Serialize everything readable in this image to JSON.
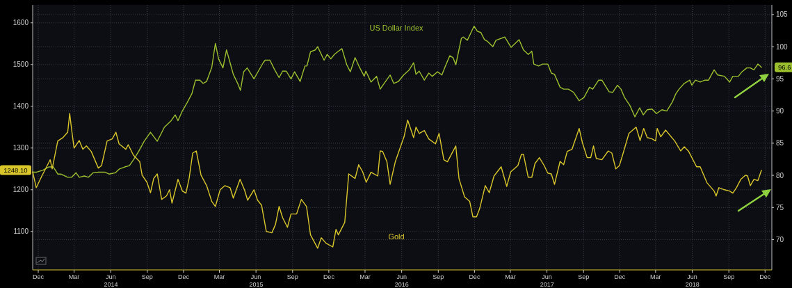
{
  "chart_data": {
    "type": "line",
    "xlim": [
      "2013-11-17",
      "2018-12-18"
    ],
    "xticks": [
      {
        "value": "2013-12-01",
        "label": "Dec"
      },
      {
        "value": "2014-03-01",
        "label": "Mar"
      },
      {
        "value": "2014-06-01",
        "label": "Jun"
      },
      {
        "value": "2014-09-01",
        "label": "Sep"
      },
      {
        "value": "2014-12-01",
        "label": "Dec"
      },
      {
        "value": "2015-03-01",
        "label": "Mar"
      },
      {
        "value": "2015-06-01",
        "label": "Jun"
      },
      {
        "value": "2015-09-01",
        "label": "Sep"
      },
      {
        "value": "2015-12-01",
        "label": "Dec"
      },
      {
        "value": "2016-03-01",
        "label": "Mar"
      },
      {
        "value": "2016-06-01",
        "label": "Jun"
      },
      {
        "value": "2016-09-01",
        "label": "Sep"
      },
      {
        "value": "2016-12-01",
        "label": "Dec"
      },
      {
        "value": "2017-03-01",
        "label": "Mar"
      },
      {
        "value": "2017-06-01",
        "label": "Jun"
      },
      {
        "value": "2017-09-01",
        "label": "Sep"
      },
      {
        "value": "2017-12-01",
        "label": "Dec"
      },
      {
        "value": "2018-03-01",
        "label": "Mar"
      },
      {
        "value": "2018-06-01",
        "label": "Jun"
      },
      {
        "value": "2018-09-01",
        "label": "Sep"
      },
      {
        "value": "2018-12-01",
        "label": "Dec"
      }
    ],
    "ylim": [
      1008,
      1643
    ],
    "yticks": [
      1100,
      1200,
      1300,
      1400,
      1500,
      1600
    ],
    "y2lim": [
      65.3,
      106.5
    ],
    "y2ticks": [
      70,
      75,
      80,
      85,
      90,
      95,
      100,
      105
    ],
    "grid": true,
    "annotations": [
      "96.6",
      "1248.10",
      "2014",
      "2015",
      "2016",
      "2017",
      "2018"
    ],
    "series": [
      {
        "name": "US Dollar Index",
        "color": "#9cbf2e",
        "axis": "y2",
        "x": [
          "2013-11-17",
          "2013-11-27",
          "2013-12-13",
          "2013-12-27",
          "2014-01-08",
          "2014-01-19",
          "2014-01-27",
          "2014-02-13",
          "2014-02-23",
          "2014-03-06",
          "2014-03-14",
          "2014-03-27",
          "2014-04-06",
          "2014-04-18",
          "2014-05-02",
          "2014-05-17",
          "2014-05-28",
          "2014-06-13",
          "2014-06-23",
          "2014-07-06",
          "2014-07-18",
          "2014-07-28",
          "2014-08-10",
          "2014-08-24",
          "2014-09-09",
          "2014-09-26",
          "2014-10-14",
          "2014-10-31",
          "2014-11-10",
          "2014-11-17",
          "2014-11-28",
          "2014-12-10",
          "2014-12-22",
          "2014-12-31",
          "2015-01-11",
          "2015-01-19",
          "2015-01-28",
          "2015-02-10",
          "2015-02-19",
          "2015-02-27",
          "2015-03-10",
          "2015-03-19",
          "2015-03-28",
          "2015-04-05",
          "2015-04-16",
          "2015-04-23",
          "2015-05-01",
          "2015-05-10",
          "2015-05-18",
          "2015-05-27",
          "2015-06-07",
          "2015-06-19",
          "2015-06-24",
          "2015-07-06",
          "2015-07-18",
          "2015-07-29",
          "2015-08-07",
          "2015-08-16",
          "2015-08-28",
          "2015-09-06",
          "2015-09-20",
          "2015-10-02",
          "2015-10-07",
          "2015-10-16",
          "2015-10-28",
          "2015-11-03",
          "2015-11-19",
          "2015-11-27",
          "2015-12-06",
          "2015-12-15",
          "2015-12-23",
          "2016-01-03",
          "2016-01-15",
          "2016-01-24",
          "2016-02-05",
          "2016-02-16",
          "2016-02-28",
          "2016-03-03",
          "2016-03-16",
          "2016-03-30",
          "2016-04-08",
          "2016-04-24",
          "2016-05-03",
          "2016-05-12",
          "2016-05-24",
          "2016-06-06",
          "2016-06-20",
          "2016-07-01",
          "2016-07-07",
          "2016-07-15",
          "2016-07-28",
          "2016-08-08",
          "2016-08-17",
          "2016-08-30",
          "2016-09-10",
          "2016-09-19",
          "2016-09-30",
          "2016-10-08",
          "2016-10-15",
          "2016-10-29",
          "2016-11-03",
          "2016-11-13",
          "2016-11-30",
          "2016-12-08",
          "2016-12-17",
          "2016-12-26",
          "2017-01-03",
          "2017-01-16",
          "2017-01-24",
          "2017-02-15",
          "2017-03-03",
          "2017-03-23",
          "2017-04-03",
          "2017-04-15",
          "2017-04-24",
          "2017-04-29",
          "2017-05-11",
          "2017-05-21",
          "2017-06-03",
          "2017-06-12",
          "2017-06-20",
          "2017-07-04",
          "2017-07-13",
          "2017-07-25",
          "2017-08-07",
          "2017-08-21",
          "2017-09-02",
          "2017-09-16",
          "2017-09-24",
          "2017-10-09",
          "2017-10-17",
          "2017-11-04",
          "2017-11-13",
          "2017-11-25",
          "2017-12-04",
          "2017-12-13",
          "2017-12-27",
          "2018-01-08",
          "2018-01-20",
          "2018-01-29",
          "2018-02-08",
          "2018-02-20",
          "2018-03-03",
          "2018-03-17",
          "2018-03-29",
          "2018-04-12",
          "2018-04-21",
          "2018-04-29",
          "2018-05-12",
          "2018-05-26",
          "2018-05-31",
          "2018-06-09",
          "2018-06-21",
          "2018-07-03",
          "2018-07-12",
          "2018-07-26",
          "2018-08-04",
          "2018-08-21",
          "2018-09-03",
          "2018-09-11",
          "2018-09-25",
          "2018-10-04",
          "2018-10-16",
          "2018-10-25",
          "2018-11-03",
          "2018-11-13",
          "2018-11-22"
        ],
        "values": [
          80.5,
          80.5,
          80.8,
          81.3,
          81.3,
          80.2,
          80.2,
          79.7,
          79.7,
          80.4,
          79.7,
          79.9,
          79.7,
          80.4,
          80.5,
          80.5,
          80.2,
          80.4,
          81.0,
          81.3,
          81.5,
          82.4,
          83.7,
          85.3,
          86.7,
          85.3,
          87.5,
          88.5,
          89.4,
          88.5,
          90.0,
          91.3,
          92.7,
          94.8,
          94.8,
          94.3,
          94.6,
          96.8,
          100.5,
          98.1,
          96.7,
          99.5,
          97.5,
          95.7,
          94.3,
          93.2,
          96.1,
          96.7,
          95.9,
          95.0,
          96.2,
          97.5,
          97.9,
          97.9,
          96.4,
          95.2,
          96.2,
          96.2,
          95.0,
          96.1,
          94.6,
          97.0,
          97.0,
          99.2,
          99.5,
          100.0,
          97.9,
          98.8,
          98.1,
          98.8,
          99.2,
          99.7,
          97.2,
          96.1,
          98.3,
          96.8,
          95.4,
          96.2,
          94.5,
          95.4,
          93.4,
          94.8,
          95.6,
          94.3,
          94.6,
          95.6,
          96.4,
          97.5,
          95.7,
          96.2,
          94.8,
          95.9,
          95.4,
          96.1,
          95.6,
          97.0,
          98.6,
          98.3,
          97.2,
          101.3,
          101.5,
          101.0,
          103.2,
          102.4,
          102.2,
          101.1,
          100.8,
          100.0,
          101.0,
          101.5,
          99.9,
          101.1,
          99.5,
          98.8,
          99.3,
          97.3,
          97.0,
          97.3,
          97.3,
          95.9,
          95.7,
          93.7,
          93.4,
          93.4,
          92.9,
          91.6,
          92.1,
          93.7,
          93.4,
          94.8,
          94.8,
          93.0,
          92.9,
          94.0,
          93.4,
          92.1,
          90.8,
          89.1,
          90.5,
          89.4,
          90.2,
          90.3,
          89.6,
          90.2,
          90.0,
          91.4,
          92.7,
          93.4,
          94.3,
          94.8,
          94.0,
          94.8,
          94.5,
          94.8,
          94.8,
          96.4,
          95.6,
          95.4,
          94.5,
          95.4,
          95.4,
          96.1,
          96.7,
          96.7,
          96.4,
          97.3,
          96.8
        ]
      },
      {
        "name": "Gold",
        "color": "#d9c62b",
        "x": [
          "2013-11-17",
          "2013-11-26",
          "2013-12-10",
          "2013-12-22",
          "2013-12-31",
          "2014-01-05",
          "2014-01-19",
          "2014-02-01",
          "2014-02-13",
          "2014-02-18",
          "2014-02-23",
          "2014-03-01",
          "2014-03-14",
          "2014-03-23",
          "2014-04-01",
          "2014-04-13",
          "2014-05-01",
          "2014-05-09",
          "2014-05-23",
          "2014-06-05",
          "2014-06-14",
          "2014-06-22",
          "2014-07-09",
          "2014-07-15",
          "2014-07-28",
          "2014-08-13",
          "2014-08-19",
          "2014-08-31",
          "2014-09-09",
          "2014-09-17",
          "2014-09-26",
          "2014-10-07",
          "2014-10-19",
          "2014-10-27",
          "2014-11-02",
          "2014-11-17",
          "2014-11-28",
          "2014-12-07",
          "2014-12-15",
          "2014-12-24",
          "2015-01-02",
          "2015-01-14",
          "2015-01-28",
          "2015-02-10",
          "2015-02-19",
          "2015-03-03",
          "2015-03-15",
          "2015-03-28",
          "2015-04-05",
          "2015-04-22",
          "2015-05-03",
          "2015-05-11",
          "2015-05-27",
          "2015-06-05",
          "2015-06-15",
          "2015-06-27",
          "2015-07-11",
          "2015-07-20",
          "2015-07-29",
          "2015-08-07",
          "2015-08-19",
          "2015-08-28",
          "2015-09-11",
          "2015-09-23",
          "2015-10-06",
          "2015-10-16",
          "2015-11-03",
          "2015-11-12",
          "2015-11-24",
          "2015-12-11",
          "2015-12-19",
          "2015-12-25",
          "2016-01-10",
          "2016-01-20",
          "2016-02-05",
          "2016-02-14",
          "2016-02-24",
          "2016-03-04",
          "2016-03-16",
          "2016-04-02",
          "2016-04-08",
          "2016-04-14",
          "2016-04-25",
          "2016-05-03",
          "2016-05-16",
          "2016-05-28",
          "2016-06-07",
          "2016-06-16",
          "2016-07-01",
          "2016-07-07",
          "2016-07-15",
          "2016-07-28",
          "2016-08-08",
          "2016-08-25",
          "2016-09-03",
          "2016-09-15",
          "2016-09-24",
          "2016-10-15",
          "2016-10-23",
          "2016-11-06",
          "2016-11-19",
          "2016-11-27",
          "2016-12-06",
          "2016-12-14",
          "2016-12-28",
          "2017-01-07",
          "2017-01-19",
          "2017-02-06",
          "2017-02-20",
          "2017-03-02",
          "2017-03-20",
          "2017-03-29",
          "2017-04-03",
          "2017-04-15",
          "2017-04-24",
          "2017-05-02",
          "2017-05-13",
          "2017-05-25",
          "2017-06-03",
          "2017-06-12",
          "2017-06-20",
          "2017-07-04",
          "2017-07-13",
          "2017-07-22",
          "2017-08-03",
          "2017-08-21",
          "2017-08-29",
          "2017-09-10",
          "2017-09-19",
          "2017-09-26",
          "2017-10-03",
          "2017-10-17",
          "2017-11-02",
          "2017-11-11",
          "2017-11-21",
          "2017-11-30",
          "2017-12-08",
          "2017-12-24",
          "2018-01-11",
          "2018-01-21",
          "2018-01-30",
          "2018-02-08",
          "2018-02-20",
          "2018-03-01",
          "2018-03-05",
          "2018-03-14",
          "2018-03-26",
          "2018-04-18",
          "2018-05-03",
          "2018-05-12",
          "2018-05-23",
          "2018-06-12",
          "2018-06-21",
          "2018-07-08",
          "2018-07-26",
          "2018-07-31",
          "2018-08-07",
          "2018-08-21",
          "2018-09-03",
          "2018-09-11",
          "2018-09-20",
          "2018-10-01",
          "2018-10-13",
          "2018-10-18",
          "2018-10-25",
          "2018-11-03",
          "2018-11-13",
          "2018-11-22"
        ],
        "values": [
          1243,
          1205,
          1233,
          1255,
          1272,
          1250,
          1317,
          1325,
          1338,
          1383,
          1343,
          1300,
          1318,
          1297,
          1305,
          1292,
          1252,
          1258,
          1317,
          1322,
          1338,
          1310,
          1297,
          1308,
          1283,
          1267,
          1235,
          1218,
          1193,
          1227,
          1238,
          1177,
          1185,
          1200,
          1168,
          1225,
          1197,
          1192,
          1227,
          1288,
          1293,
          1235,
          1210,
          1172,
          1160,
          1200,
          1210,
          1205,
          1180,
          1225,
          1200,
          1175,
          1200,
          1175,
          1163,
          1100,
          1097,
          1117,
          1160,
          1133,
          1110,
          1142,
          1142,
          1177,
          1160,
          1092,
          1060,
          1085,
          1072,
          1063,
          1105,
          1092,
          1122,
          1238,
          1227,
          1260,
          1243,
          1218,
          1242,
          1233,
          1293,
          1292,
          1267,
          1213,
          1267,
          1300,
          1327,
          1367,
          1325,
          1350,
          1335,
          1342,
          1322,
          1310,
          1335,
          1272,
          1267,
          1305,
          1227,
          1183,
          1172,
          1135,
          1135,
          1155,
          1210,
          1193,
          1233,
          1255,
          1208,
          1243,
          1258,
          1285,
          1285,
          1230,
          1230,
          1263,
          1277,
          1258,
          1240,
          1238,
          1213,
          1268,
          1260,
          1292,
          1297,
          1347,
          1313,
          1277,
          1277,
          1305,
          1275,
          1272,
          1293,
          1288,
          1250,
          1258,
          1283,
          1335,
          1350,
          1318,
          1347,
          1325,
          1322,
          1317,
          1347,
          1327,
          1343,
          1317,
          1293,
          1303,
          1292,
          1255,
          1255,
          1217,
          1197,
          1185,
          1205,
          1200,
          1197,
          1192,
          1205,
          1225,
          1235,
          1233,
          1210,
          1225,
          1222,
          1247
        ]
      }
    ]
  }
}
